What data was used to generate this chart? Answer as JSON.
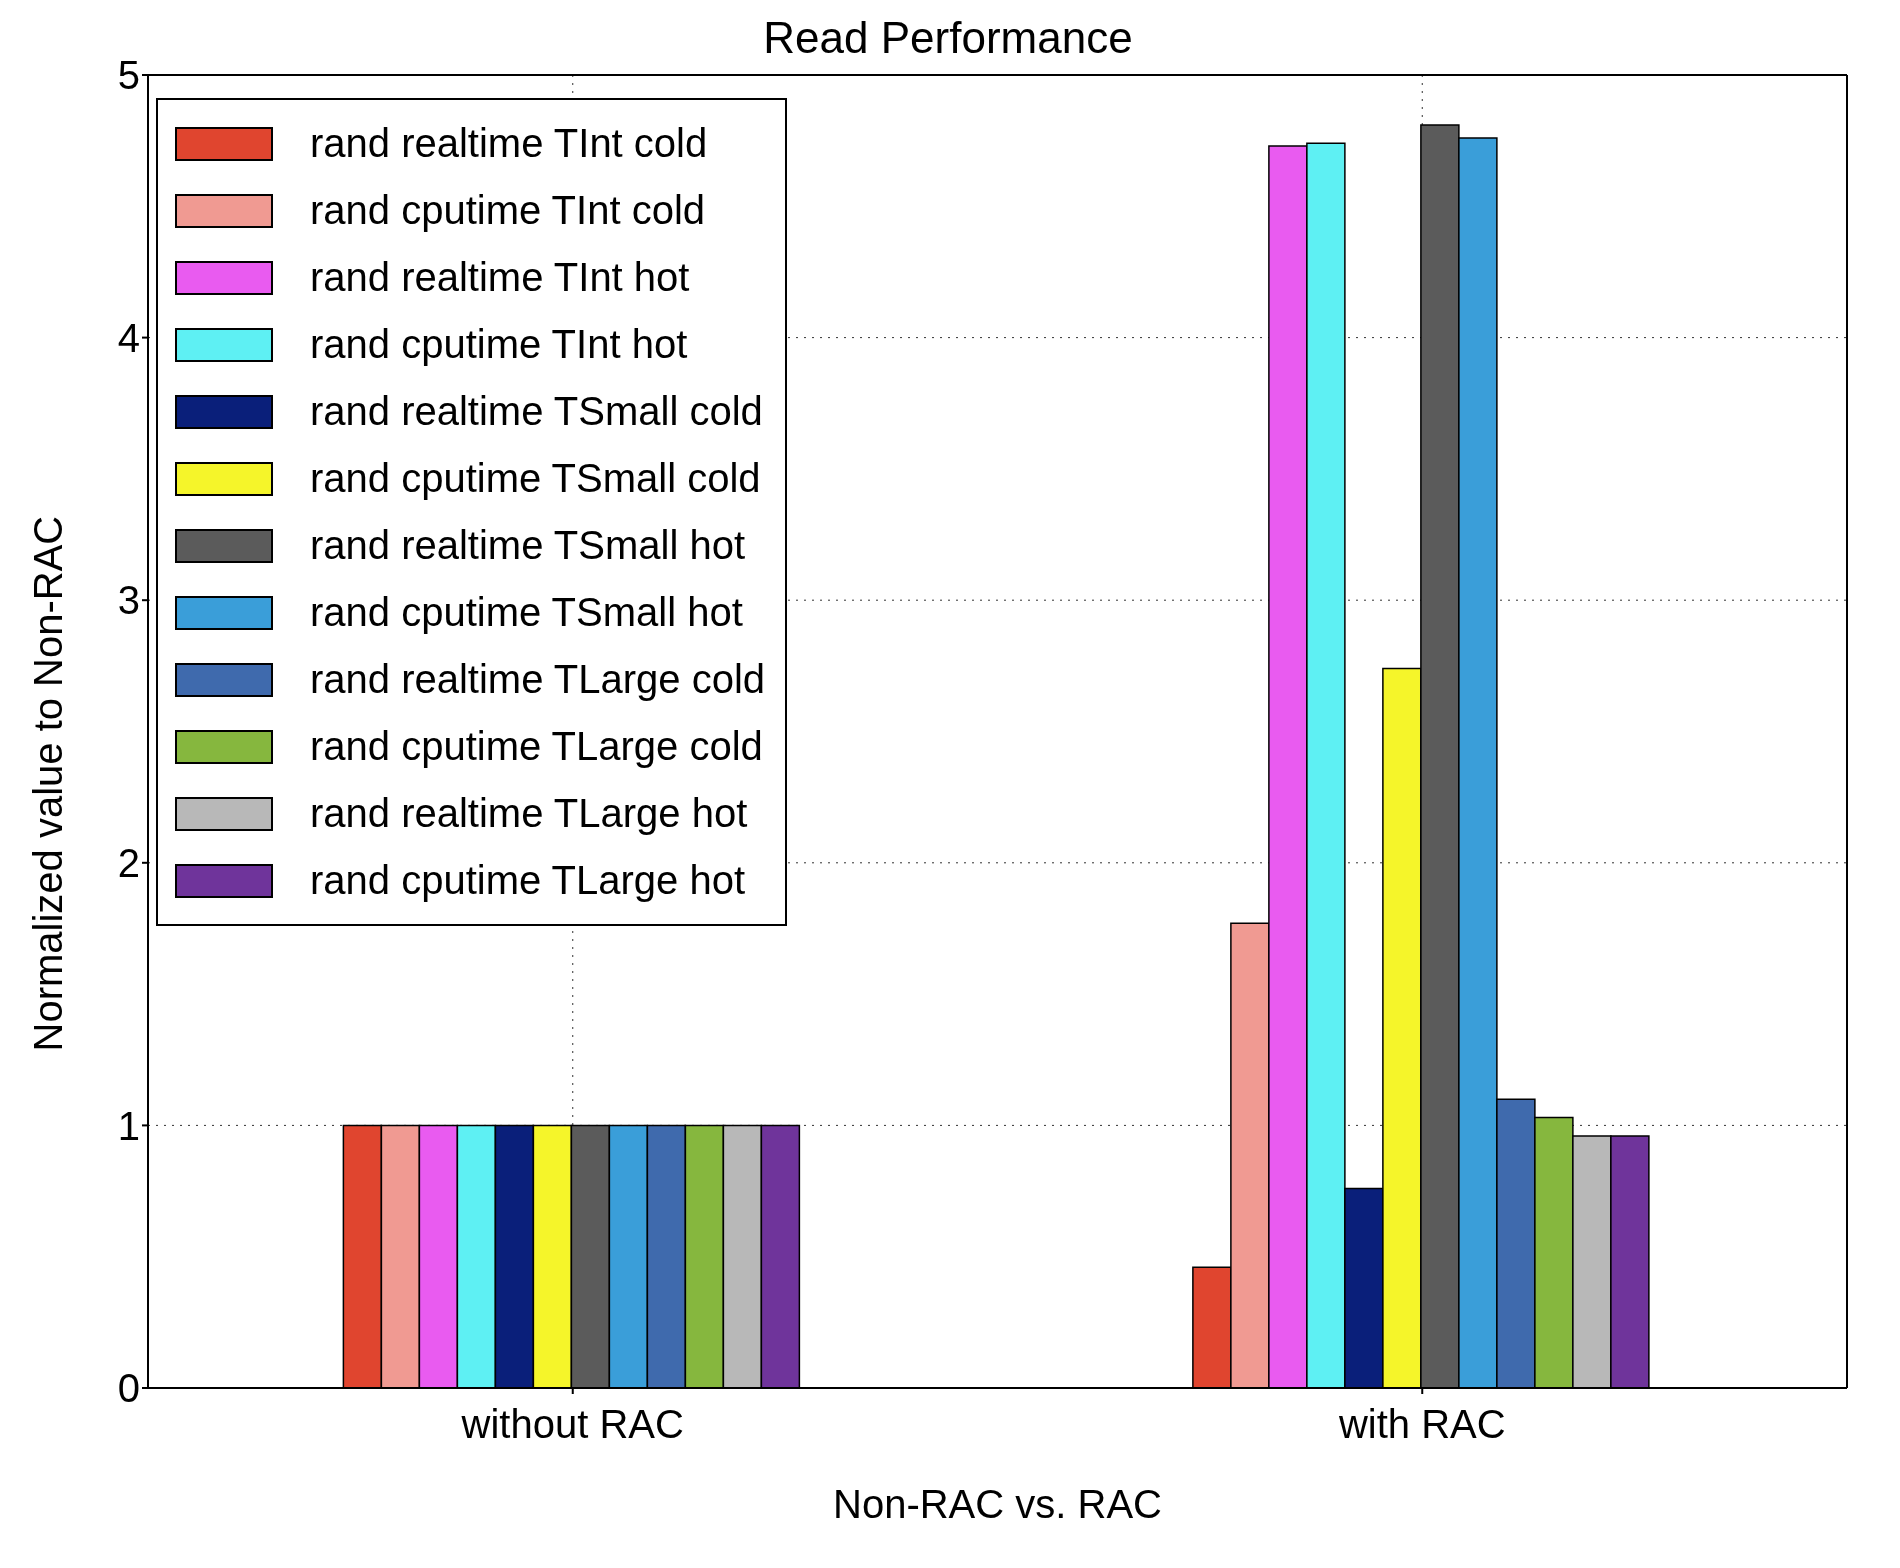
{
  "chart_data": {
    "type": "bar",
    "title": "Read Performance",
    "xlabel": "Non-RAC vs. RAC",
    "ylabel": "Normalized value to Non-RAC",
    "categories": [
      "without RAC",
      "with RAC"
    ],
    "series": [
      {
        "name": "rand realtime TInt cold",
        "color": "#e0452f",
        "values": [
          1,
          0.46
        ]
      },
      {
        "name": "rand cputime TInt cold",
        "color": "#f09a92",
        "values": [
          1,
          1.77
        ]
      },
      {
        "name": "rand realtime TInt hot",
        "color": "#e95bf0",
        "values": [
          1,
          4.73
        ]
      },
      {
        "name": "rand cputime TInt hot",
        "color": "#5ef0f3",
        "values": [
          1,
          4.74
        ]
      },
      {
        "name": "rand realtime TSmall cold",
        "color": "#0a1f7a",
        "values": [
          1,
          0.76
        ]
      },
      {
        "name": "rand cputime TSmall cold",
        "color": "#f5f52a",
        "values": [
          1,
          2.74
        ]
      },
      {
        "name": "rand realtime TSmall hot",
        "color": "#5b5b5b",
        "values": [
          1,
          4.81
        ]
      },
      {
        "name": "rand cputime TSmall hot",
        "color": "#3a9ed9",
        "values": [
          1,
          4.76
        ]
      },
      {
        "name": "rand realtime TLarge cold",
        "color": "#3f6aad",
        "values": [
          1,
          1.1
        ]
      },
      {
        "name": "rand cputime TLarge cold",
        "color": "#86b73e",
        "values": [
          1,
          1.03
        ]
      },
      {
        "name": "rand realtime TLarge hot",
        "color": "#b8b8b8",
        "values": [
          1,
          0.96
        ]
      },
      {
        "name": "rand cputime TLarge hot",
        "color": "#6f349b",
        "values": [
          1,
          0.96
        ]
      }
    ],
    "ylim": [
      0,
      5
    ],
    "yticks": [
      0,
      1,
      2,
      3,
      4,
      5
    ],
    "grid": true,
    "legend": "top left"
  }
}
